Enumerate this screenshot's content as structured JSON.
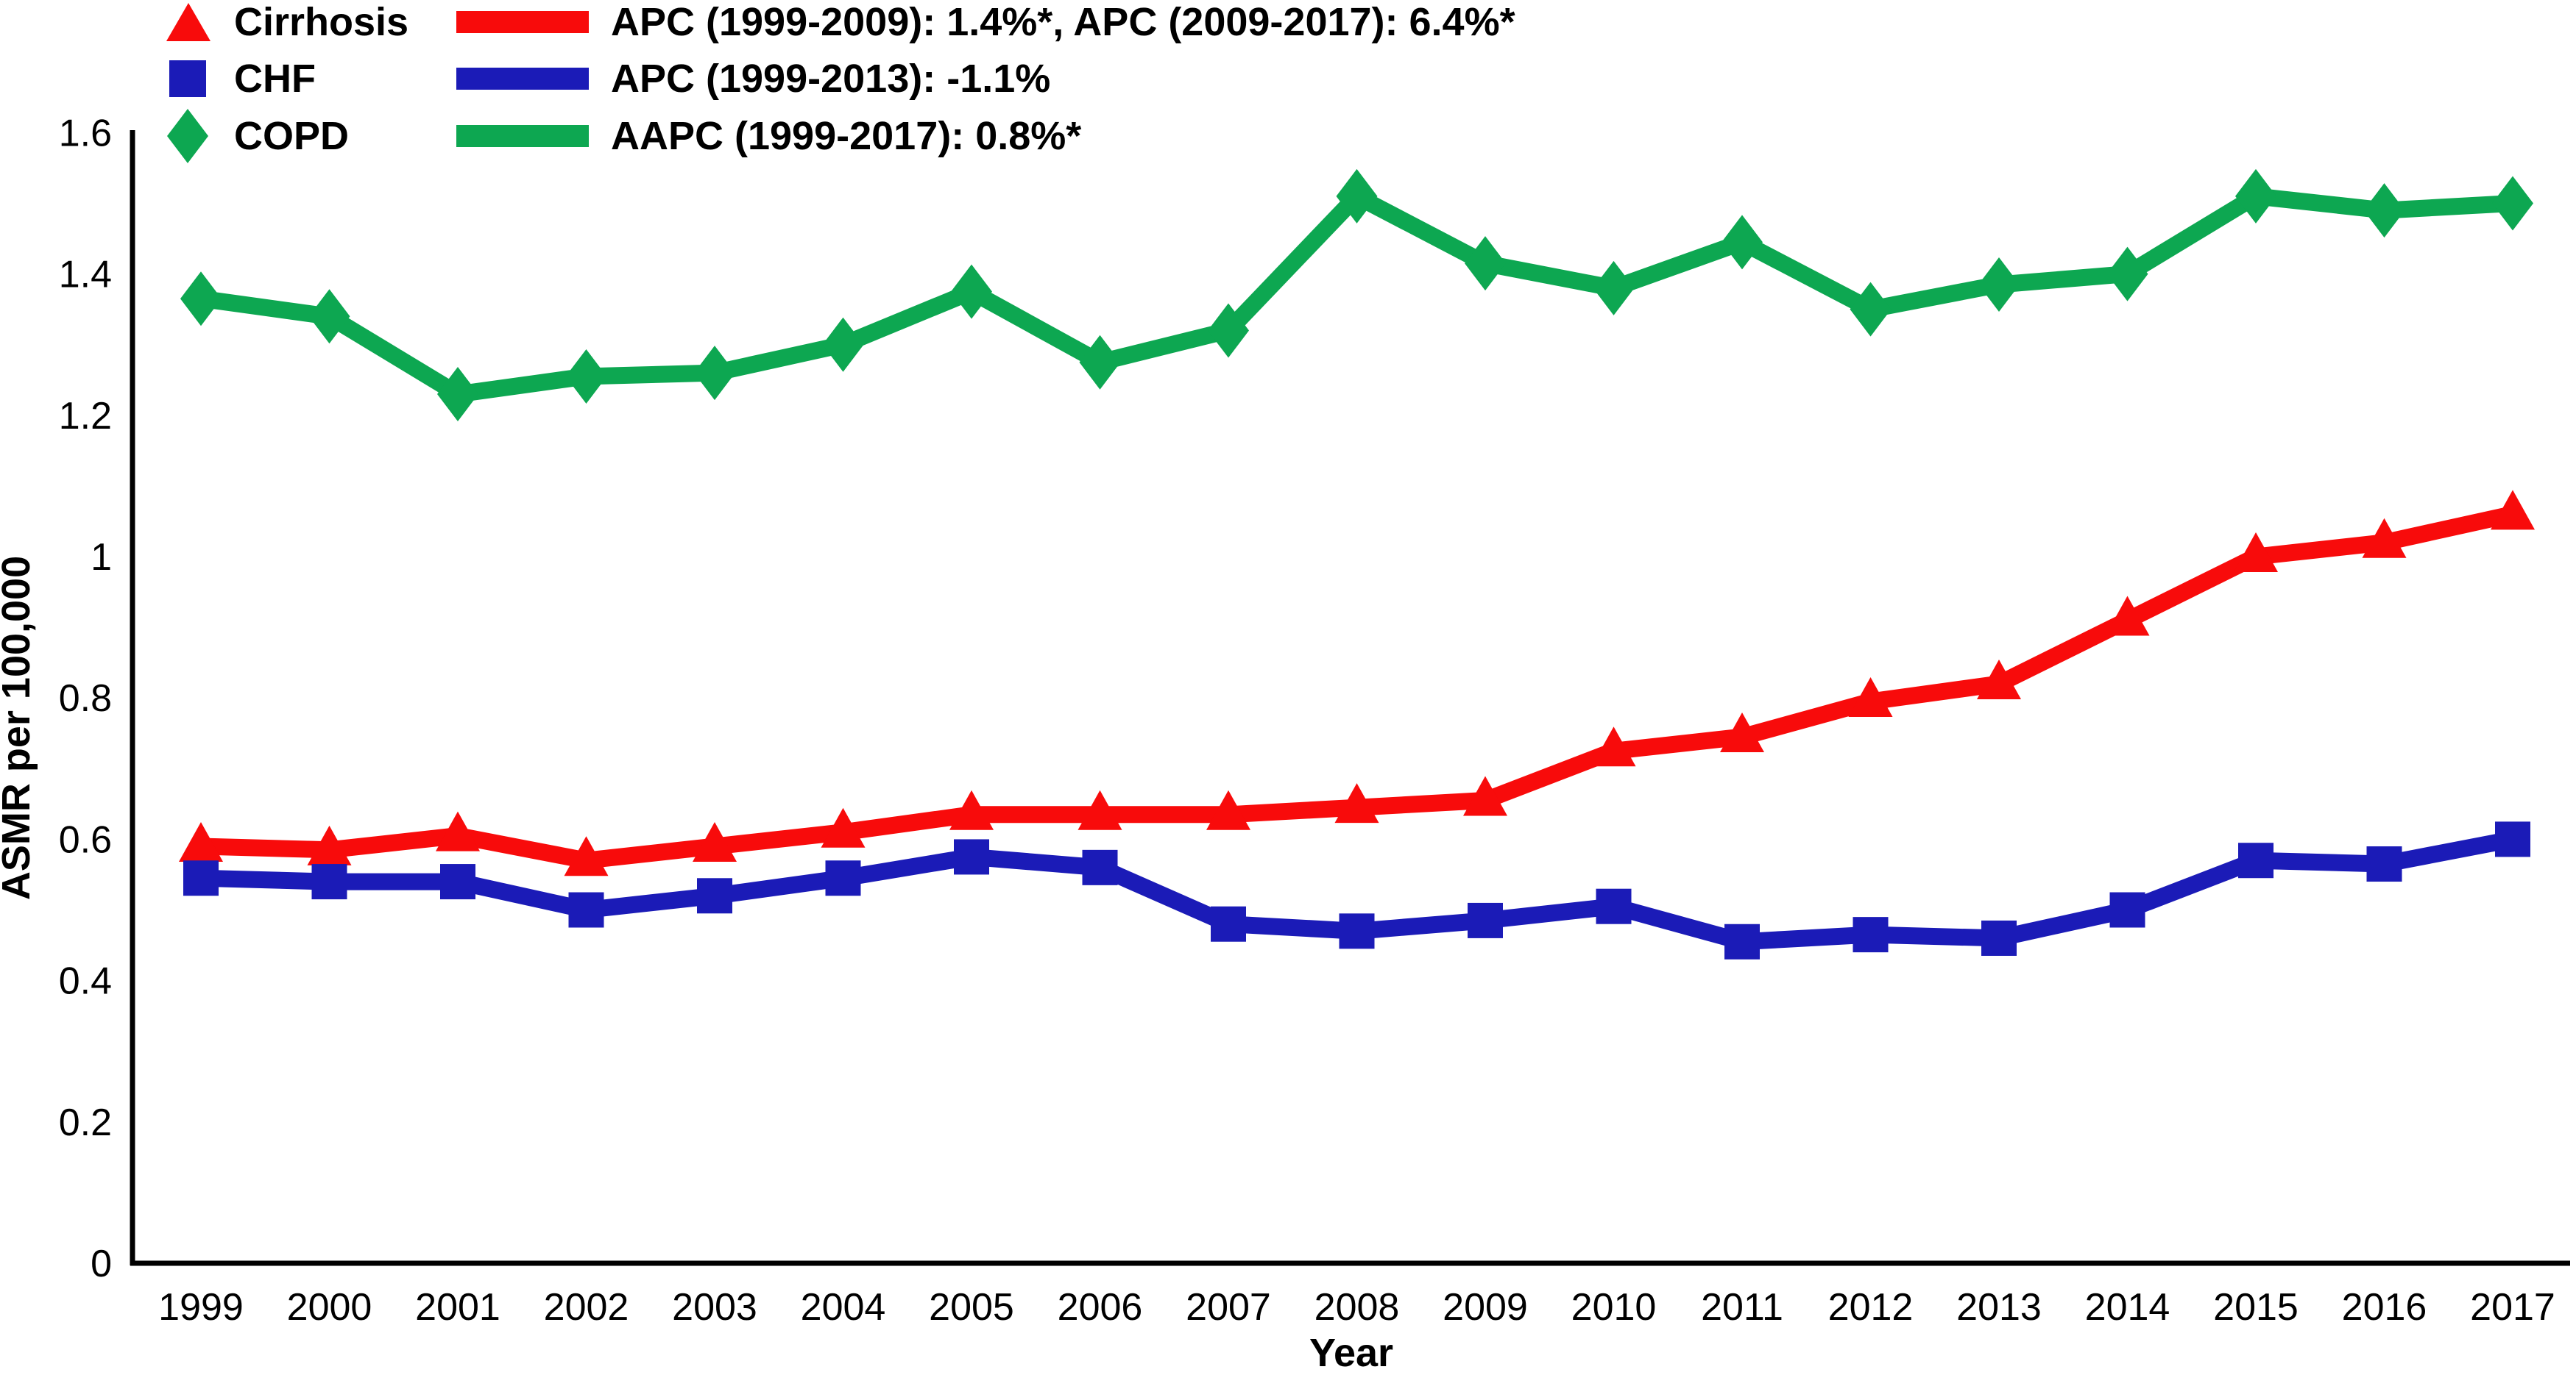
{
  "chart_data": {
    "type": "line",
    "xlabel": "Year",
    "ylabel": "ASMR per 100,000",
    "x": [
      1999,
      2000,
      2001,
      2002,
      2003,
      2004,
      2005,
      2006,
      2007,
      2008,
      2009,
      2010,
      2011,
      2012,
      2013,
      2014,
      2015,
      2016,
      2017
    ],
    "yticks": [
      "0",
      "0.2",
      "0.4",
      "0.6",
      "0.8",
      "1",
      "1.2",
      "1.4",
      "1.6"
    ],
    "ylim": [
      0,
      1.6
    ],
    "grid": false,
    "legend_position": "top-left",
    "axis_color": "#000000",
    "series": [
      {
        "name": "Cirrhosis",
        "marker": "triangle",
        "color": "#F80B0B",
        "stat_label": "APC (1999-2009): 1.4%*, APC (2009-2017): 6.4%*",
        "values": [
          0.59,
          0.585,
          0.605,
          0.57,
          0.59,
          0.61,
          0.635,
          0.635,
          0.635,
          0.645,
          0.655,
          0.725,
          0.745,
          0.795,
          0.82,
          0.91,
          1.0,
          1.02,
          1.06
        ]
      },
      {
        "name": "CHF",
        "marker": "square",
        "color": "#1B1BB7",
        "stat_label": "APC (1999-2013): -1.1%",
        "values": [
          0.545,
          0.54,
          0.54,
          0.5,
          0.52,
          0.545,
          0.575,
          0.56,
          0.48,
          0.47,
          0.485,
          0.505,
          0.455,
          0.465,
          0.46,
          0.5,
          0.57,
          0.565,
          0.6
        ]
      },
      {
        "name": "COPD",
        "marker": "diamond",
        "color": "#0DA751",
        "stat_label": "AAPC (1999-2017): 0.8%*",
        "values": [
          1.365,
          1.34,
          1.23,
          1.255,
          1.26,
          1.3,
          1.375,
          1.275,
          1.32,
          1.51,
          1.415,
          1.38,
          1.445,
          1.35,
          1.385,
          1.4,
          1.51,
          1.49,
          1.5
        ]
      }
    ]
  }
}
